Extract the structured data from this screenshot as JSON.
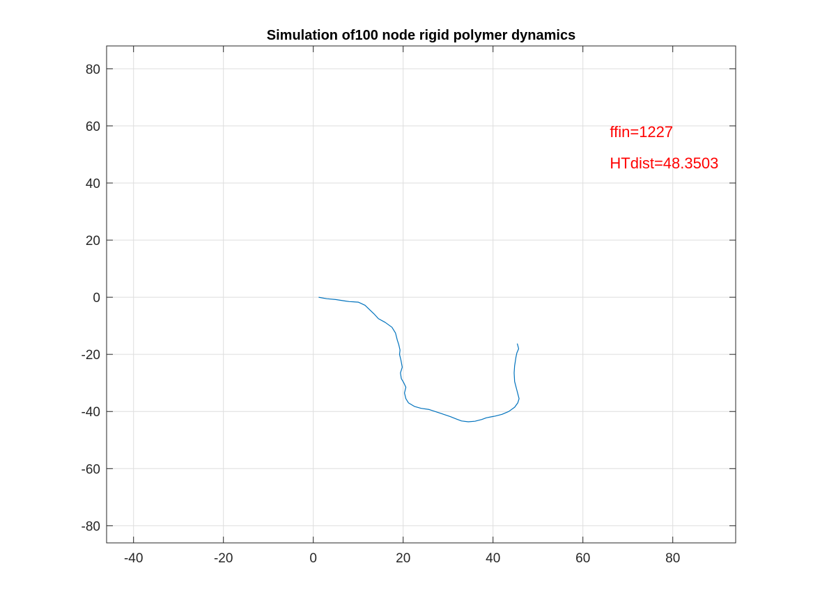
{
  "chart_data": {
    "type": "line",
    "title": "Simulation of100 node rigid polymer dynamics",
    "xlabel": "",
    "ylabel": "",
    "xlim": [
      -46,
      94
    ],
    "ylim": [
      -86,
      88
    ],
    "xticks": [
      -40,
      -20,
      0,
      20,
      40,
      60,
      80
    ],
    "yticks": [
      -80,
      -60,
      -40,
      -20,
      0,
      20,
      40,
      60,
      80
    ],
    "grid": true,
    "series": [
      {
        "color": "#0072BD",
        "x": [
          1.2,
          3,
          5,
          7,
          8,
          10,
          11.5,
          12.5,
          13.5,
          14.5,
          16,
          17.5,
          18.3,
          18.7,
          19,
          19.3,
          19.2,
          19.5,
          19.8,
          19.4,
          19.6,
          20.1,
          20.6,
          20.3,
          20.6,
          21.2,
          22.5,
          24,
          25.8,
          27.5,
          29,
          30.5,
          31.8,
          33,
          34.5,
          36,
          37.5,
          38.5,
          39.5,
          40.5,
          42,
          43.5,
          44.8,
          45.5,
          45.8,
          45.3,
          44.8,
          44.7,
          44.8,
          45.1,
          45.3,
          45.7,
          45.4
        ],
        "y": [
          0,
          -0.5,
          -0.8,
          -1.3,
          -1.5,
          -1.7,
          -2.8,
          -4.3,
          -5.8,
          -7.5,
          -8.8,
          -10.5,
          -12.5,
          -15,
          -16.5,
          -18.5,
          -20,
          -22,
          -24.5,
          -26.5,
          -28.5,
          -29.8,
          -31.5,
          -33.5,
          -35.5,
          -37,
          -38.2,
          -38.9,
          -39.3,
          -40.2,
          -41,
          -41.8,
          -42.6,
          -43.3,
          -43.6,
          -43.4,
          -42.8,
          -42.2,
          -41.9,
          -41.6,
          -41,
          -40,
          -38.5,
          -37,
          -35.5,
          -32.5,
          -29.5,
          -26.5,
          -24,
          -21,
          -19.5,
          -18,
          -16.2
        ]
      }
    ],
    "annotations": [
      {
        "text": "ffin=1227",
        "x": 66,
        "y": 58,
        "color": "#FF0000"
      },
      {
        "text": "HTdist=48.3503",
        "x": 66,
        "y": 47,
        "color": "#FF0000"
      }
    ]
  }
}
